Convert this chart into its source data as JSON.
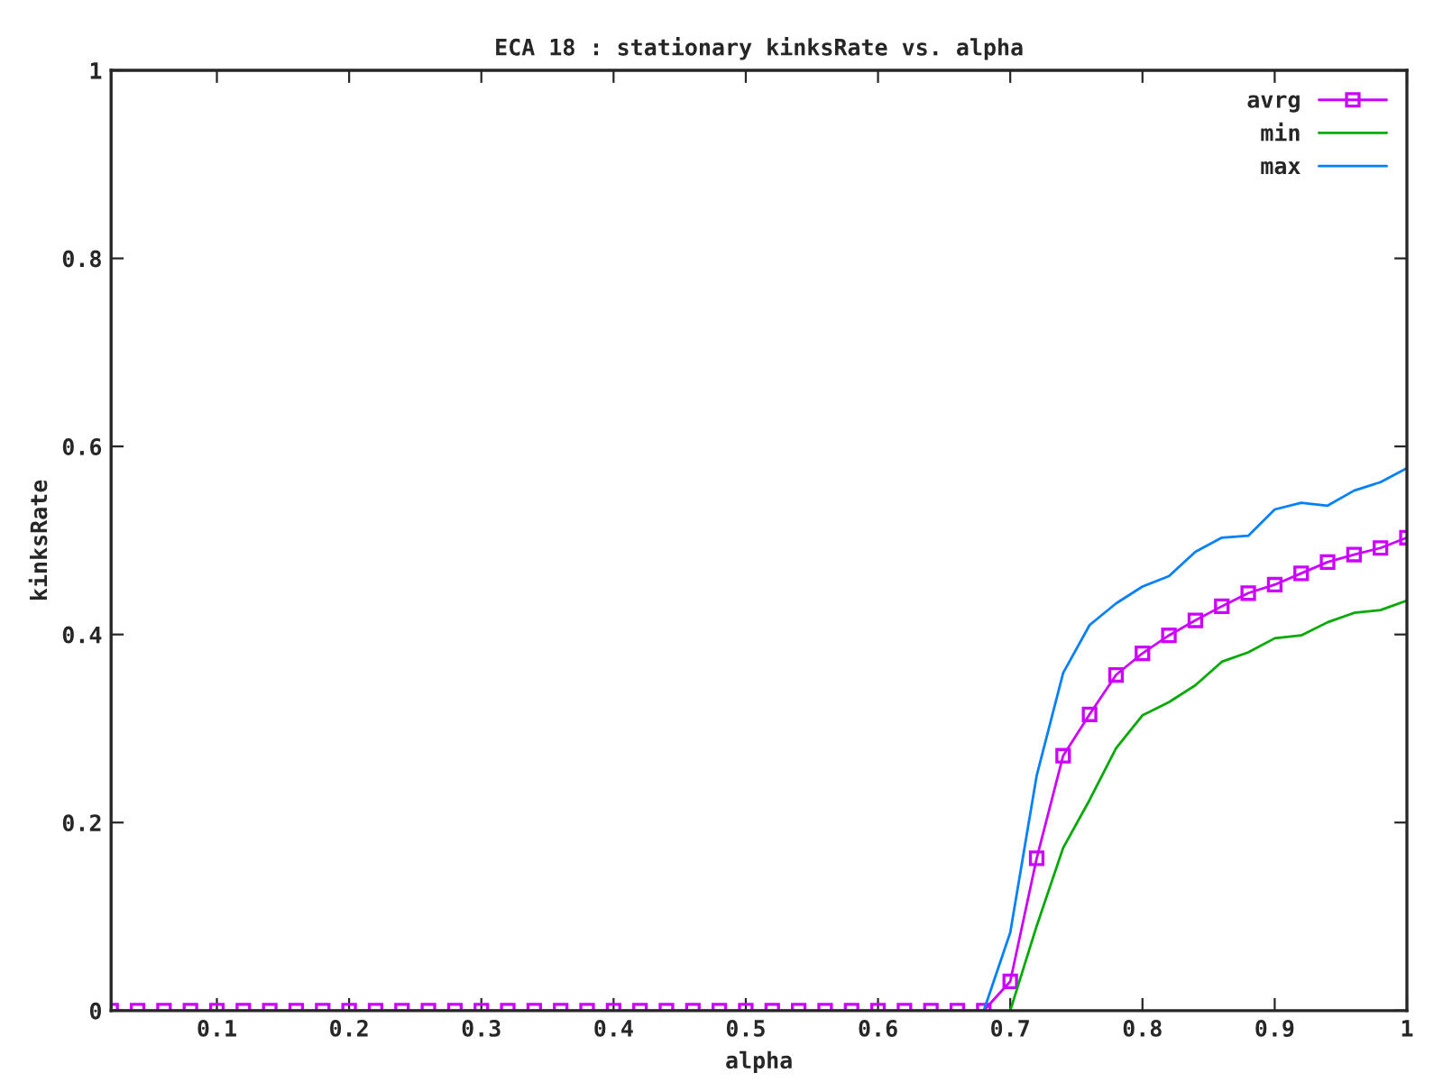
{
  "chart_data": {
    "type": "line",
    "title": "ECA 18 : stationary kinksRate vs. alpha",
    "xlabel": "alpha",
    "ylabel": "kinksRate",
    "x": [
      0.02,
      0.04,
      0.06,
      0.08,
      0.1,
      0.12,
      0.14,
      0.16,
      0.18,
      0.2,
      0.22,
      0.24,
      0.26,
      0.28,
      0.3,
      0.32,
      0.34,
      0.36,
      0.38,
      0.4,
      0.42,
      0.44,
      0.46,
      0.48,
      0.5,
      0.52,
      0.54,
      0.56,
      0.58,
      0.6,
      0.62,
      0.64,
      0.66,
      0.68,
      0.7,
      0.72,
      0.74,
      0.76,
      0.78,
      0.8,
      0.82,
      0.84,
      0.86,
      0.88,
      0.9,
      0.92,
      0.94,
      0.96,
      0.98,
      1.0
    ],
    "series": [
      {
        "name": "avrg",
        "color": "#cc00ff",
        "marker": "square",
        "values": [
          0,
          0,
          0,
          0,
          0,
          0,
          0,
          0,
          0,
          0,
          0,
          0,
          0,
          0,
          0,
          0,
          0,
          0,
          0,
          0,
          0,
          0,
          0,
          0,
          0,
          0,
          0,
          0,
          0,
          0,
          0,
          0,
          0,
          0,
          0.031,
          0.162,
          0.271,
          0.315,
          0.357,
          0.38,
          0.399,
          0.415,
          0.43,
          0.444,
          0.453,
          0.465,
          0.477,
          0.485,
          0.492,
          0.503
        ]
      },
      {
        "name": "min",
        "color": "#00aa00",
        "marker": "none",
        "values": [
          null,
          null,
          null,
          null,
          null,
          null,
          null,
          null,
          null,
          null,
          null,
          null,
          null,
          null,
          null,
          null,
          null,
          null,
          null,
          null,
          null,
          null,
          null,
          null,
          null,
          null,
          null,
          null,
          null,
          null,
          null,
          null,
          null,
          null,
          0,
          0.09,
          0.173,
          0.224,
          0.279,
          0.314,
          0.328,
          0.346,
          0.371,
          0.381,
          0.396,
          0.399,
          0.413,
          0.423,
          0.426,
          0.436
        ]
      },
      {
        "name": "max",
        "color": "#0080ff",
        "marker": "none",
        "values": [
          null,
          null,
          null,
          null,
          null,
          null,
          null,
          null,
          null,
          null,
          null,
          null,
          null,
          null,
          null,
          null,
          null,
          null,
          null,
          null,
          null,
          null,
          null,
          null,
          null,
          null,
          null,
          null,
          null,
          null,
          null,
          null,
          null,
          0,
          0.083,
          0.25,
          0.359,
          0.41,
          0.433,
          0.451,
          0.462,
          0.488,
          0.503,
          0.505,
          0.533,
          0.54,
          0.537,
          0.553,
          0.562,
          0.577
        ]
      }
    ],
    "xlim": [
      0.02,
      1
    ],
    "ylim": [
      0,
      1
    ],
    "xticks": [
      0.1,
      0.2,
      0.3,
      0.4,
      0.5,
      0.6,
      0.7,
      0.8,
      0.9,
      {
        "value": 1,
        "label": "1"
      }
    ],
    "yticks": [
      {
        "value": 0,
        "label": "0"
      },
      0.2,
      0.4,
      0.6,
      0.8,
      {
        "value": 1,
        "label": "1"
      }
    ],
    "grid": false,
    "legend": "top right"
  }
}
